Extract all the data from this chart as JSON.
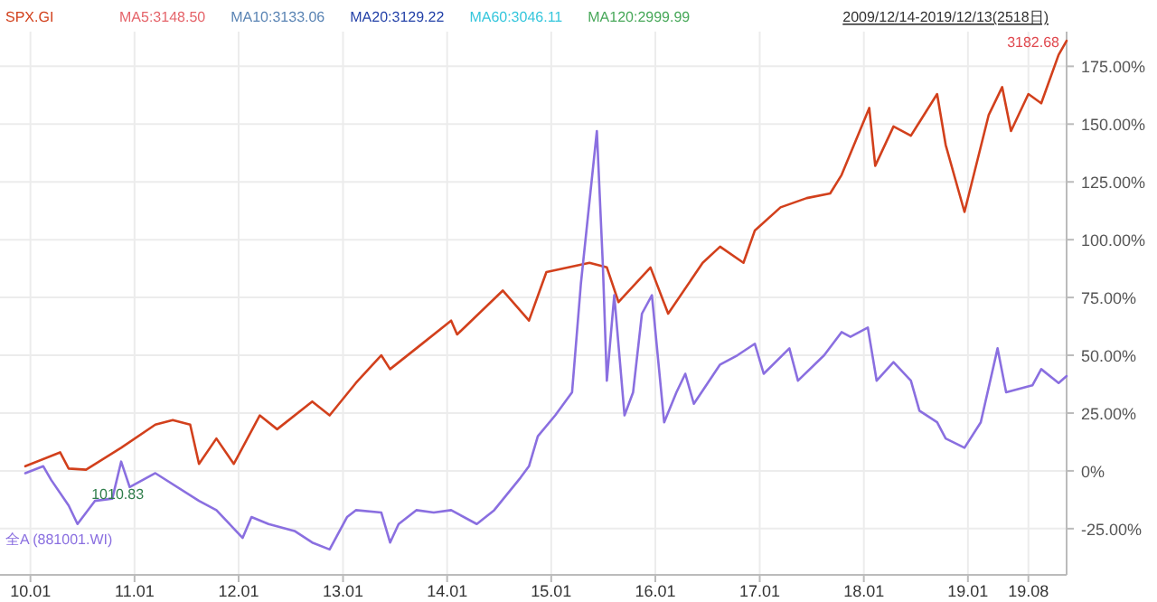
{
  "chart_data": {
    "type": "line",
    "subtitle": "2009/12/14-2019/12/13(2518日)",
    "annotations": [
      "MA5:3148.50",
      "MA10:3133.06",
      "MA20:3129.22",
      "MA60:3046.11",
      "MA120:2999.99",
      {
        "text": "3182.68",
        "x": "2019-12-13",
        "y": 186
      },
      {
        "text": "1010.83",
        "x": "2010-07-15",
        "y": 0.5
      }
    ],
    "xlim": [
      "2009-12-14",
      "2019-12-13"
    ],
    "xticks": [
      {
        "value": "2010-01-01",
        "label": "10.01"
      },
      {
        "value": "2011-01-01",
        "label": "11.01"
      },
      {
        "value": "2012-01-01",
        "label": "12.01"
      },
      {
        "value": "2013-01-01",
        "label": "13.01"
      },
      {
        "value": "2014-01-01",
        "label": "14.01"
      },
      {
        "value": "2015-01-01",
        "label": "15.01"
      },
      {
        "value": "2016-01-01",
        "label": "16.01"
      },
      {
        "value": "2017-01-01",
        "label": "17.01"
      },
      {
        "value": "2018-01-01",
        "label": "18.01"
      },
      {
        "value": "2019-01-01",
        "label": "19.01"
      },
      {
        "value": "2019-08-01",
        "label": "19.08"
      }
    ],
    "ylim": [
      -45,
      190
    ],
    "yticks": [
      {
        "value": -25,
        "label": "-25.00%"
      },
      {
        "value": 0,
        "label": "0%"
      },
      {
        "value": 25,
        "label": "25.00%"
      },
      {
        "value": 50,
        "label": "50.00%"
      },
      {
        "value": 75,
        "label": "75.00%"
      },
      {
        "value": 100,
        "label": "100.00%"
      },
      {
        "value": 125,
        "label": "125.00%"
      },
      {
        "value": 150,
        "label": "150.00%"
      },
      {
        "value": 175,
        "label": "175.00%"
      }
    ],
    "grid": true,
    "legend": false,
    "series": [
      {
        "name": "SPX.GI",
        "color": "#d2401c",
        "x": [
          "2009-12-14",
          "2010-04-15",
          "2010-05-15",
          "2010-07-15",
          "2010-11-15",
          "2011-03-15",
          "2011-05-15",
          "2011-07-15",
          "2011-08-15",
          "2011-10-15",
          "2011-12-15",
          "2012-03-15",
          "2012-05-15",
          "2012-09-15",
          "2012-11-15",
          "2013-02-15",
          "2013-05-15",
          "2013-06-15",
          "2013-09-15",
          "2014-01-15",
          "2014-02-05",
          "2014-07-15",
          "2014-10-15",
          "2014-12-15",
          "2015-05-15",
          "2015-07-15",
          "2015-08-25",
          "2015-12-15",
          "2016-02-15",
          "2016-06-15",
          "2016-08-15",
          "2016-11-05",
          "2016-12-15",
          "2017-03-15",
          "2017-06-15",
          "2017-09-05",
          "2017-10-15",
          "2018-01-20",
          "2018-02-10",
          "2018-04-15",
          "2018-06-15",
          "2018-09-15",
          "2018-10-15",
          "2018-12-20",
          "2019-03-15",
          "2019-05-01",
          "2019-06-01",
          "2019-08-01",
          "2019-09-15",
          "2019-11-15",
          "2019-12-13"
        ],
        "values": [
          2,
          8,
          1,
          0.5,
          10,
          20,
          22,
          20,
          3,
          14,
          3,
          24,
          18,
          30,
          24,
          38,
          50,
          44,
          53,
          65,
          59,
          78,
          65,
          86,
          90,
          88,
          73,
          88,
          68,
          90,
          97,
          90,
          104,
          114,
          118,
          120,
          128,
          157,
          132,
          149,
          145,
          163,
          141,
          112,
          154,
          166,
          147,
          163,
          159,
          180,
          186
        ]
      },
      {
        "name": "全A (881001.WI)",
        "color": "#8a6fe0",
        "x": [
          "2009-12-14",
          "2010-02-15",
          "2010-03-15",
          "2010-05-15",
          "2010-06-15",
          "2010-08-15",
          "2010-10-15",
          "2010-11-15",
          "2010-12-15",
          "2011-03-15",
          "2011-08-15",
          "2011-10-15",
          "2012-01-15",
          "2012-02-15",
          "2012-04-15",
          "2012-07-15",
          "2012-09-15",
          "2012-11-15",
          "2013-01-15",
          "2013-02-15",
          "2013-05-15",
          "2013-06-15",
          "2013-07-15",
          "2013-09-15",
          "2013-11-15",
          "2014-01-15",
          "2014-04-15",
          "2014-06-15",
          "2014-09-15",
          "2014-10-15",
          "2014-11-15",
          "2015-01-15",
          "2015-03-15",
          "2015-04-15",
          "2015-06-10",
          "2015-07-01",
          "2015-07-15",
          "2015-08-10",
          "2015-09-15",
          "2015-10-15",
          "2015-11-15",
          "2015-12-20",
          "2016-02-01",
          "2016-03-15",
          "2016-04-15",
          "2016-05-15",
          "2016-08-15",
          "2016-10-15",
          "2016-12-15",
          "2017-01-15",
          "2017-04-15",
          "2017-05-15",
          "2017-08-15",
          "2017-10-15",
          "2017-11-15",
          "2018-01-15",
          "2018-02-15",
          "2018-04-15",
          "2018-06-15",
          "2018-07-15",
          "2018-09-15",
          "2018-10-15",
          "2018-12-20",
          "2019-02-15",
          "2019-04-15",
          "2019-05-15",
          "2019-08-15",
          "2019-09-15",
          "2019-11-15",
          "2019-12-13"
        ],
        "values": [
          -1,
          2,
          -4,
          -15,
          -23,
          -13,
          -12,
          4,
          -7,
          -1,
          -13,
          -17,
          -29,
          -20,
          -23,
          -26,
          -31,
          -34,
          -20,
          -17,
          -18,
          -31,
          -23,
          -17,
          -18,
          -17,
          -23,
          -17,
          -3,
          2,
          15,
          24,
          34,
          81,
          147,
          89,
          39,
          76,
          24,
          34,
          68,
          76,
          21,
          34,
          42,
          29,
          46,
          50,
          55,
          42,
          53,
          39,
          50,
          60,
          58,
          62,
          39,
          47,
          39,
          26,
          21,
          14,
          10,
          21,
          53,
          34,
          37,
          44,
          38,
          41
        ]
      }
    ]
  }
}
